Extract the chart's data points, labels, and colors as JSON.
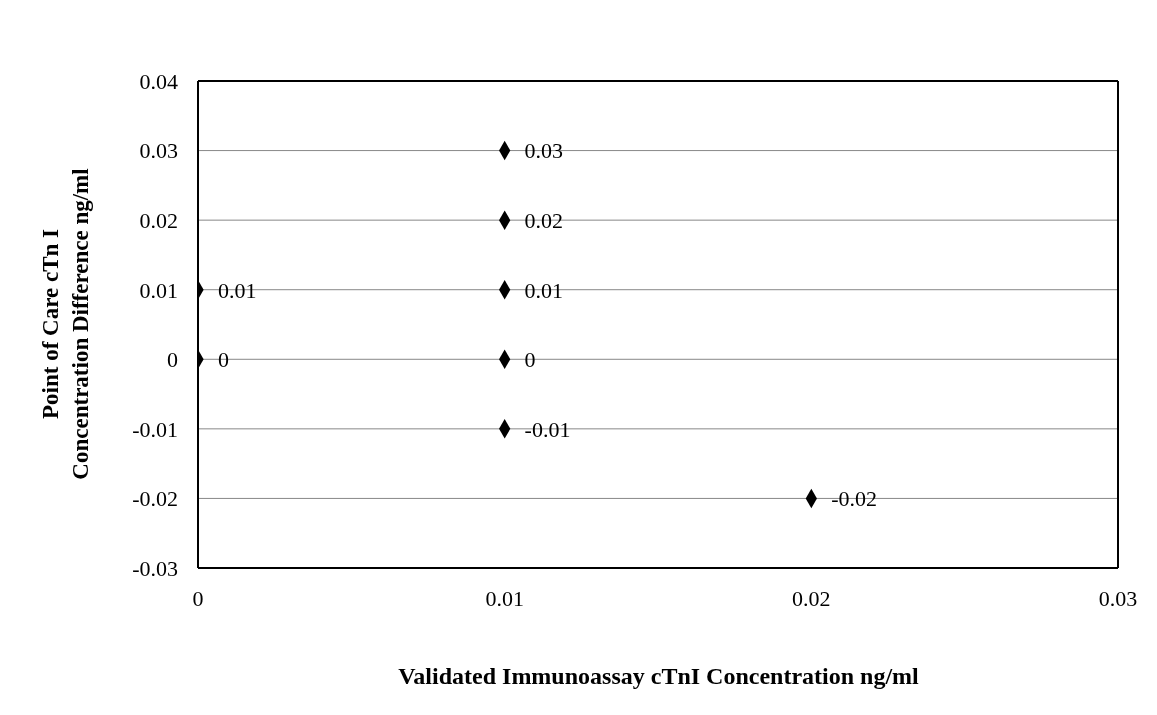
{
  "chart_data": {
    "type": "scatter",
    "xlabel": "Validated Immunoassay cTnI Concentration ng/ml",
    "ylabel": "Point of Care cTn I Concentration Difference   ng/ml",
    "x": [
      0,
      0,
      0.01,
      0.01,
      0.01,
      0.01,
      0.01,
      0.02
    ],
    "values": [
      0.01,
      0,
      0.03,
      0.02,
      0.01,
      0,
      -0.01,
      -0.02
    ],
    "color": "#000000",
    "marker": "diamond",
    "data_labels": true,
    "grid": "y",
    "xlim": [
      0,
      0.03
    ],
    "xticks": [
      0,
      0.01,
      0.02,
      0.03
    ],
    "ylim": [
      -0.03,
      0.04
    ],
    "yticks": [
      -0.03,
      -0.02,
      -0.01,
      0,
      0.01,
      0.02,
      0.03,
      0.04
    ]
  }
}
